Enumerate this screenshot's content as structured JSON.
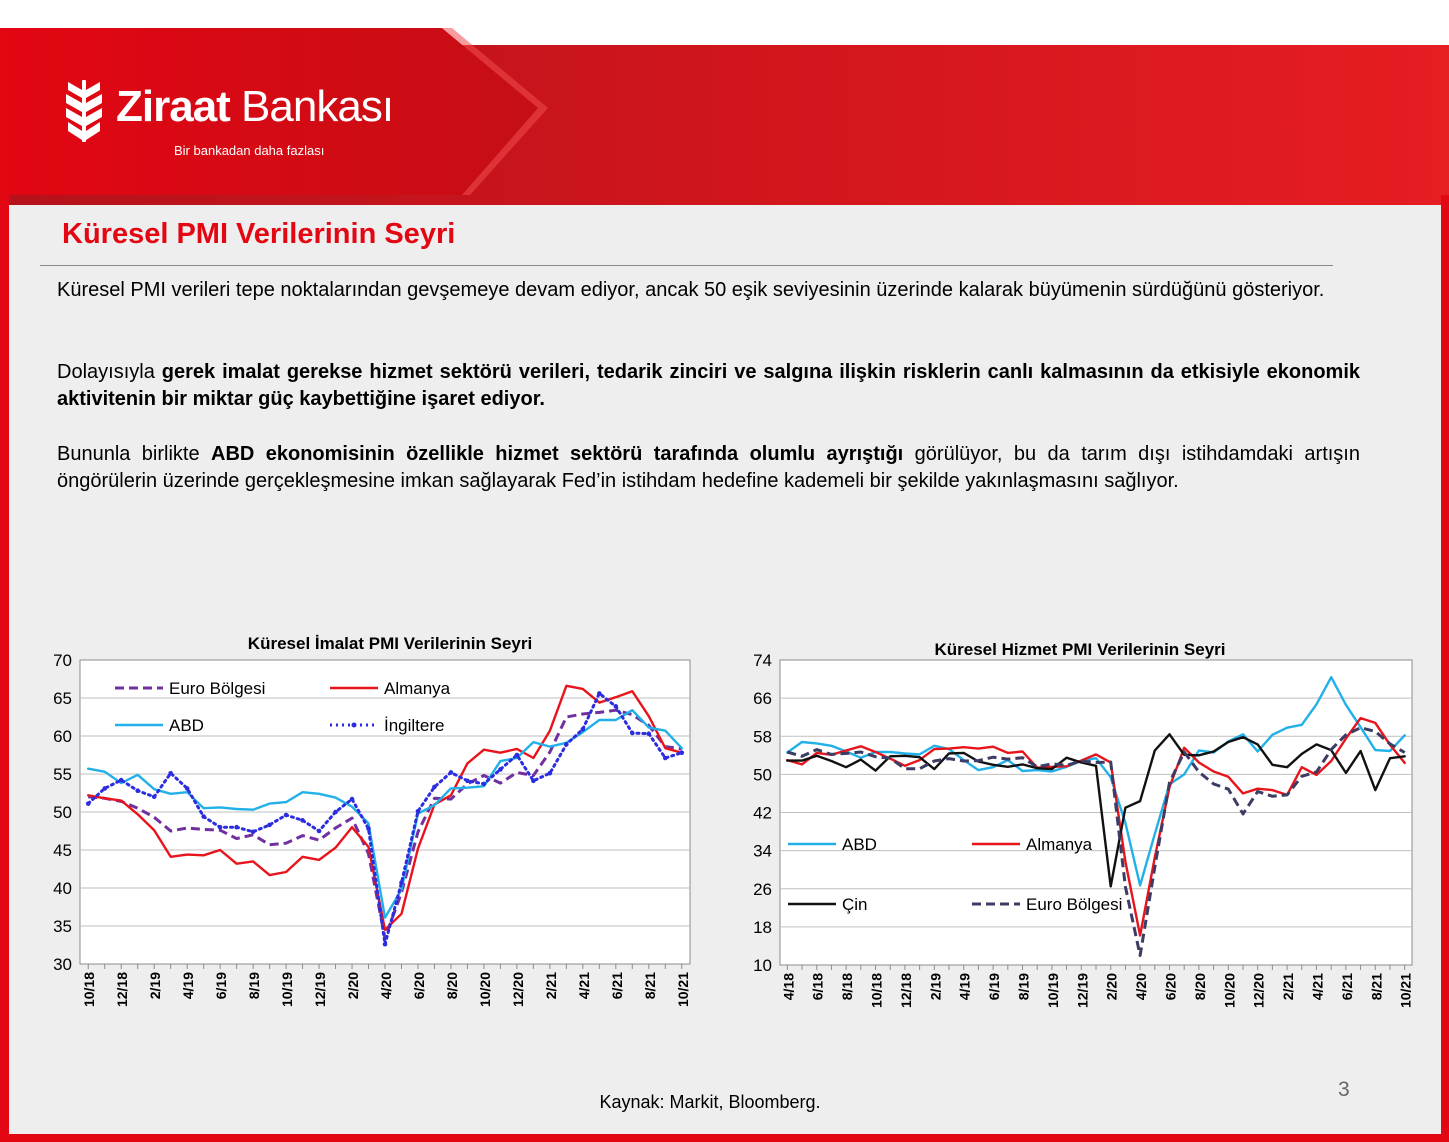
{
  "brand": {
    "name_bold": "Ziraat",
    "name_regular": " Bankası",
    "slogan": "Bir bankadan daha fazlası",
    "colors": {
      "red": "#e30613",
      "dark_red": "#b5121b"
    }
  },
  "title": "Küresel PMI Verilerinin Seyri",
  "paragraphs": {
    "p1": "Küresel PMI verileri tepe noktalarından gevşemeye devam ediyor, ancak 50 eşik seviyesinin üzerinde kalarak büyümenin sürdüğünü gösteriyor.",
    "p2_a": "Dolayısıyla ",
    "p2_b": "gerek imalat gerekse hizmet sektörü verileri, tedarik zinciri ve salgına ilişkin risklerin canlı kalmasının da etkisiyle ekonomik aktivitenin bir miktar güç kaybettiğine işaret ediyor.",
    "p3_a": "Bununla birlikte ",
    "p3_b": "ABD ekonomisinin özellikle hizmet sektörü tarafında olumlu ayrıştığı",
    "p3_c": " görülüyor, bu da tarım dışı istihdamdaki artışın öngörülerin üzerinde gerçekleşmesine imkan sağlayarak Fed’in istihdam hedefine kademeli bir şekilde yakınlaşmasını sağlıyor."
  },
  "source": "Kaynak: Markit, Bloomberg.",
  "page_number": "3",
  "chart_data": [
    {
      "type": "line",
      "title": "Küresel İmalat PMI Verilerinin Seyri",
      "xlabel": "",
      "ylabel": "",
      "ylim": [
        30,
        70
      ],
      "yticks": [
        30,
        35,
        40,
        45,
        50,
        55,
        60,
        65,
        70
      ],
      "grid": true,
      "legend": "top-left, inside",
      "x": [
        "10/18",
        "11/18",
        "12/18",
        "1/19",
        "2/19",
        "3/19",
        "4/19",
        "5/19",
        "6/19",
        "7/19",
        "8/19",
        "9/19",
        "10/19",
        "11/19",
        "12/19",
        "1/20",
        "2/20",
        "3/20",
        "4/20",
        "5/20",
        "6/20",
        "7/20",
        "8/20",
        "9/20",
        "10/20",
        "11/20",
        "12/20",
        "1/21",
        "2/21",
        "3/21",
        "4/21",
        "5/21",
        "6/21",
        "7/21",
        "8/21",
        "9/21",
        "10/21"
      ],
      "x_tick_labels": [
        "10/18",
        "12/18",
        "2/19",
        "4/19",
        "6/19",
        "8/19",
        "10/19",
        "12/19",
        "2/20",
        "4/20",
        "6/20",
        "8/20",
        "10/20",
        "12/20",
        "2/21",
        "4/21",
        "6/21",
        "8/21",
        "10/21"
      ],
      "series": [
        {
          "name": "Euro Bölgesi",
          "color": "#7030a0",
          "dash": "dash",
          "values": [
            52.0,
            51.8,
            51.4,
            50.5,
            49.3,
            47.5,
            47.9,
            47.7,
            47.6,
            46.5,
            47.0,
            45.7,
            45.9,
            46.9,
            46.3,
            47.9,
            49.2,
            44.5,
            33.4,
            39.4,
            47.4,
            51.8,
            51.7,
            53.7,
            54.8,
            53.8,
            55.2,
            54.8,
            57.9,
            62.5,
            62.9,
            63.1,
            63.4,
            62.8,
            61.4,
            58.6,
            58.3
          ]
        },
        {
          "name": "Almanya",
          "color": "#e8141c",
          "dash": "solid",
          "values": [
            52.2,
            51.8,
            51.5,
            49.7,
            47.6,
            44.1,
            44.4,
            44.3,
            45.0,
            43.2,
            43.5,
            41.7,
            42.1,
            44.1,
            43.7,
            45.3,
            48.0,
            45.4,
            34.5,
            36.6,
            45.2,
            51.0,
            52.2,
            56.4,
            58.2,
            57.8,
            58.3,
            57.1,
            60.7,
            66.6,
            66.2,
            64.4,
            65.1,
            65.9,
            62.6,
            58.4,
            57.8
          ]
        },
        {
          "name": "ABD",
          "color": "#22b0e8",
          "dash": "solid",
          "values": [
            55.7,
            55.3,
            53.8,
            54.9,
            53.0,
            52.4,
            52.6,
            50.5,
            50.6,
            50.4,
            50.3,
            51.1,
            51.3,
            52.6,
            52.4,
            51.9,
            50.7,
            48.5,
            36.1,
            39.8,
            49.8,
            50.9,
            53.1,
            53.2,
            53.4,
            56.7,
            57.1,
            59.2,
            58.6,
            59.1,
            60.5,
            62.1,
            62.1,
            63.4,
            61.1,
            60.7,
            58.4
          ]
        },
        {
          "name": "İngiltere",
          "color": "#2c2ce0",
          "dash": "dot",
          "values": [
            51.1,
            53.1,
            54.2,
            52.8,
            52.0,
            55.1,
            53.1,
            49.4,
            48.0,
            48.0,
            47.4,
            48.3,
            49.6,
            48.9,
            47.5,
            50.0,
            51.7,
            47.8,
            32.6,
            40.7,
            50.1,
            53.3,
            55.2,
            54.1,
            53.7,
            55.6,
            57.5,
            54.1,
            55.1,
            58.9,
            60.9,
            65.6,
            63.9,
            60.4,
            60.3,
            57.1,
            57.8
          ]
        }
      ]
    },
    {
      "type": "line",
      "title": "Küresel Hizmet PMI Verilerinin Seyri",
      "xlabel": "",
      "ylabel": "",
      "ylim": [
        10,
        74
      ],
      "yticks": [
        10,
        18,
        26,
        34,
        42,
        50,
        58,
        66,
        74
      ],
      "grid": true,
      "legend": "lower-left, inside",
      "x": [
        "4/18",
        "5/18",
        "6/18",
        "7/18",
        "8/18",
        "9/18",
        "10/18",
        "11/18",
        "12/18",
        "1/19",
        "2/19",
        "3/19",
        "4/19",
        "5/19",
        "6/19",
        "7/19",
        "8/19",
        "9/19",
        "10/19",
        "11/19",
        "12/19",
        "1/20",
        "2/20",
        "3/20",
        "4/20",
        "5/20",
        "6/20",
        "7/20",
        "8/20",
        "9/20",
        "10/20",
        "11/20",
        "12/20",
        "1/21",
        "2/21",
        "3/21",
        "4/21",
        "5/21",
        "6/21",
        "7/21",
        "8/21",
        "9/21",
        "10/21"
      ],
      "x_tick_labels": [
        "4/18",
        "6/18",
        "8/18",
        "10/18",
        "12/18",
        "2/19",
        "4/19",
        "6/19",
        "8/19",
        "10/19",
        "12/19",
        "2/20",
        "4/20",
        "6/20",
        "8/20",
        "10/20",
        "12/20",
        "2/21",
        "4/21",
        "6/21",
        "8/21",
        "10/21"
      ],
      "series": [
        {
          "name": "ABD",
          "color": "#22b0e8",
          "dash": "solid",
          "values": [
            54.6,
            56.8,
            56.5,
            56.0,
            54.8,
            53.5,
            54.7,
            54.7,
            54.4,
            54.2,
            56.0,
            55.3,
            53.0,
            50.9,
            51.5,
            53.0,
            50.7,
            50.9,
            50.6,
            51.6,
            52.8,
            53.4,
            49.4,
            39.8,
            26.7,
            37.5,
            47.9,
            50.0,
            55.0,
            54.6,
            56.9,
            58.4,
            54.8,
            58.3,
            59.8,
            60.4,
            64.7,
            70.4,
            64.6,
            59.9,
            55.1,
            54.9,
            58.2
          ]
        },
        {
          "name": "Almanya",
          "color": "#e8141c",
          "dash": "solid",
          "values": [
            53.0,
            52.1,
            54.5,
            54.1,
            55.0,
            55.9,
            54.7,
            53.3,
            51.8,
            53.0,
            55.3,
            55.4,
            55.7,
            55.4,
            55.8,
            54.5,
            54.8,
            51.4,
            51.6,
            51.7,
            52.9,
            54.2,
            52.5,
            31.7,
            16.2,
            32.6,
            47.3,
            55.6,
            52.5,
            50.6,
            49.5,
            46.0,
            47.0,
            46.7,
            45.7,
            51.5,
            49.9,
            52.8,
            57.5,
            61.8,
            60.8,
            56.2,
            52.4
          ]
        },
        {
          "name": "Çin",
          "color": "#111111",
          "dash": "solid",
          "values": [
            52.9,
            52.9,
            53.9,
            52.8,
            51.5,
            53.1,
            50.8,
            53.8,
            53.9,
            53.6,
            51.1,
            54.4,
            54.5,
            52.7,
            52.0,
            51.6,
            52.1,
            51.3,
            51.1,
            53.5,
            52.5,
            51.8,
            26.5,
            43.0,
            44.4,
            55.0,
            58.4,
            54.1,
            54.0,
            54.8,
            56.8,
            57.8,
            56.3,
            52.0,
            51.5,
            54.3,
            56.3,
            55.1,
            50.3,
            54.9,
            46.7,
            53.4,
            53.8
          ]
        },
        {
          "name": "Euro Bölgesi",
          "color": "#3c3c64",
          "dash": "dash",
          "values": [
            54.7,
            53.8,
            55.2,
            54.2,
            54.4,
            54.7,
            53.7,
            53.4,
            51.2,
            51.2,
            52.8,
            53.3,
            52.8,
            52.9,
            53.6,
            53.2,
            53.5,
            51.6,
            52.2,
            51.9,
            52.8,
            52.5,
            52.6,
            26.4,
            12.0,
            30.5,
            48.3,
            54.7,
            50.5,
            48.0,
            46.9,
            41.7,
            46.4,
            45.4,
            45.7,
            49.6,
            50.5,
            55.2,
            58.3,
            59.8,
            59.0,
            56.4,
            54.6
          ]
        }
      ]
    }
  ]
}
